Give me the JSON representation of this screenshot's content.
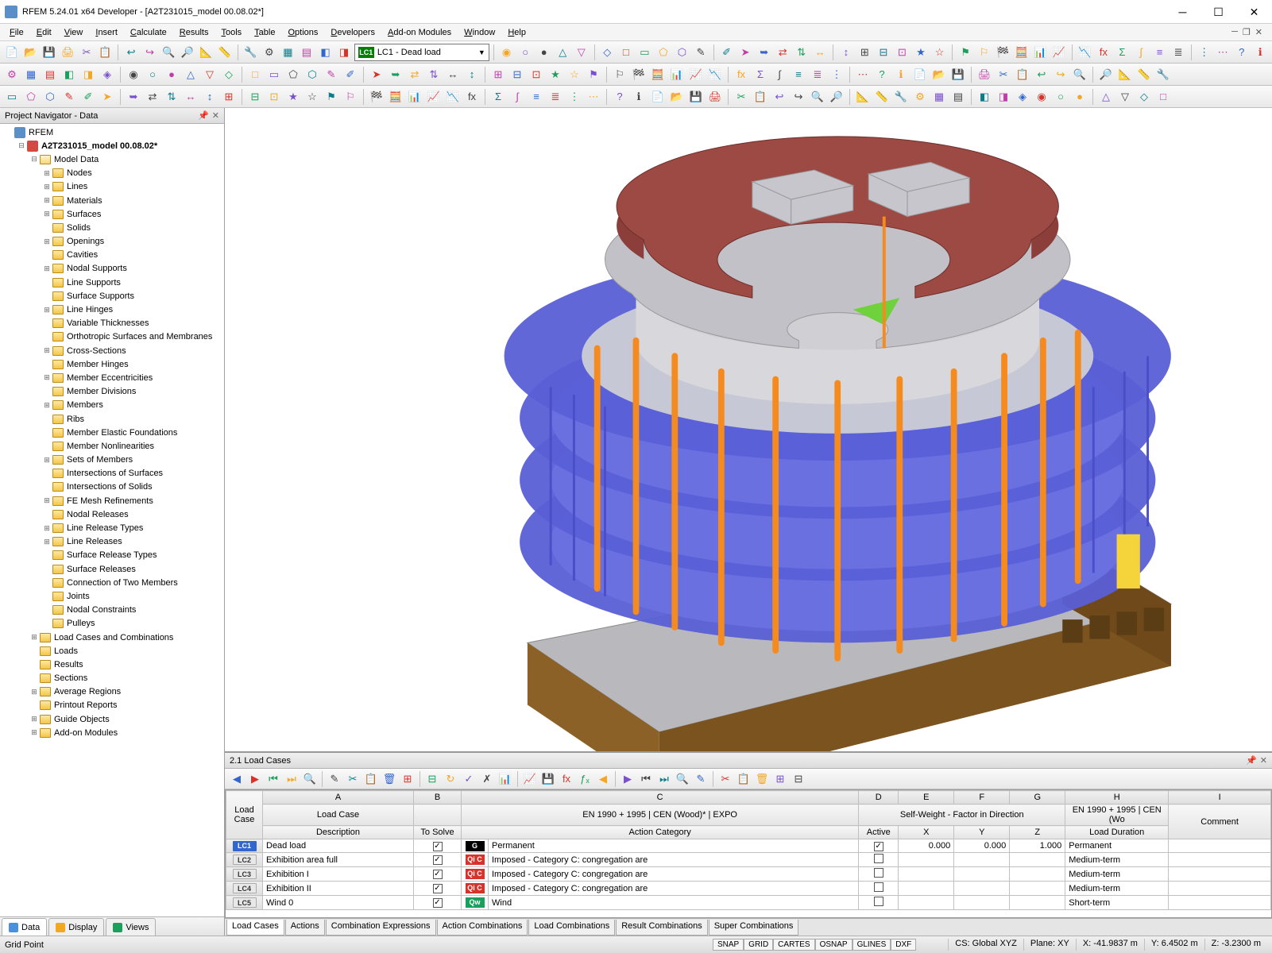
{
  "app": {
    "title": "RFEM 5.24.01 x64 Developer - [A2T231015_model 00.08.02*]",
    "icon_color": "#5b8fc7"
  },
  "menu": [
    "File",
    "Edit",
    "View",
    "Insert",
    "Calculate",
    "Results",
    "Tools",
    "Table",
    "Options",
    "Developers",
    "Add-on Modules",
    "Window",
    "Help"
  ],
  "load_case_selector": {
    "tag": "LC1",
    "label": "LC1 - Dead load",
    "tag_bg": "#008000"
  },
  "toolbar_rows": 3,
  "toolbar_icons_per_row": 58,
  "navigator": {
    "title": "Project Navigator - Data",
    "root": "RFEM",
    "model": "A2T231015_model 00.08.02*",
    "model_data_label": "Model Data",
    "items": [
      {
        "label": "Nodes",
        "exp": "+"
      },
      {
        "label": "Lines",
        "exp": "+"
      },
      {
        "label": "Materials",
        "exp": "+"
      },
      {
        "label": "Surfaces",
        "exp": "+"
      },
      {
        "label": "Solids",
        "exp": ""
      },
      {
        "label": "Openings",
        "exp": "+"
      },
      {
        "label": "Cavities",
        "exp": ""
      },
      {
        "label": "Nodal Supports",
        "exp": "+"
      },
      {
        "label": "Line Supports",
        "exp": ""
      },
      {
        "label": "Surface Supports",
        "exp": ""
      },
      {
        "label": "Line Hinges",
        "exp": "+"
      },
      {
        "label": "Variable Thicknesses",
        "exp": ""
      },
      {
        "label": "Orthotropic Surfaces and Membranes",
        "exp": ""
      },
      {
        "label": "Cross-Sections",
        "exp": "+"
      },
      {
        "label": "Member Hinges",
        "exp": ""
      },
      {
        "label": "Member Eccentricities",
        "exp": "+"
      },
      {
        "label": "Member Divisions",
        "exp": ""
      },
      {
        "label": "Members",
        "exp": "+"
      },
      {
        "label": "Ribs",
        "exp": ""
      },
      {
        "label": "Member Elastic Foundations",
        "exp": ""
      },
      {
        "label": "Member Nonlinearities",
        "exp": ""
      },
      {
        "label": "Sets of Members",
        "exp": "+"
      },
      {
        "label": "Intersections of Surfaces",
        "exp": ""
      },
      {
        "label": "Intersections of Solids",
        "exp": ""
      },
      {
        "label": "FE Mesh Refinements",
        "exp": "+"
      },
      {
        "label": "Nodal Releases",
        "exp": ""
      },
      {
        "label": "Line Release Types",
        "exp": "+"
      },
      {
        "label": "Line Releases",
        "exp": "+"
      },
      {
        "label": "Surface Release Types",
        "exp": ""
      },
      {
        "label": "Surface Releases",
        "exp": ""
      },
      {
        "label": "Connection of Two Members",
        "exp": ""
      },
      {
        "label": "Joints",
        "exp": ""
      },
      {
        "label": "Nodal Constraints",
        "exp": ""
      },
      {
        "label": "Pulleys",
        "exp": ""
      }
    ],
    "top_items": [
      {
        "label": "Load Cases and Combinations",
        "exp": "+"
      },
      {
        "label": "Loads",
        "exp": ""
      },
      {
        "label": "Results",
        "exp": ""
      },
      {
        "label": "Sections",
        "exp": ""
      },
      {
        "label": "Average Regions",
        "exp": "+"
      },
      {
        "label": "Printout Reports",
        "exp": ""
      },
      {
        "label": "Guide Objects",
        "exp": "+"
      },
      {
        "label": "Add-on Modules",
        "exp": "+"
      }
    ],
    "tabs": [
      {
        "label": "Data",
        "color": "#4a8fe0",
        "active": true
      },
      {
        "label": "Display",
        "color": "#f5a623",
        "active": false
      },
      {
        "label": "Views",
        "color": "#1aa05c",
        "active": false
      }
    ]
  },
  "bottom_panel": {
    "title": "2.1 Load Cases",
    "header_group1": "Load Case",
    "header_group3_top": "EN 1990 + 1995 | CEN (Wood)* | EXPO",
    "header_group4_top": "Self-Weight  -  Factor in Direction",
    "header_group5_top": "EN 1990 + 1995 | CEN (Wo",
    "cols_letters": [
      "A",
      "B",
      "C",
      "D",
      "E",
      "F",
      "G",
      "H",
      "I"
    ],
    "cols": [
      "Load Case",
      "Description",
      "To Solve",
      "Action Category",
      "Active",
      "X",
      "Y",
      "Z",
      "Load Duration",
      "Comment"
    ],
    "rows": [
      {
        "lc": "LC1",
        "sel": true,
        "desc": "Dead load",
        "solve": true,
        "cat_tag": "G",
        "cat_bg": "#000000",
        "cat": "Permanent",
        "active": true,
        "x": "0.000",
        "y": "0.000",
        "z": "1.000",
        "dur": "Permanent",
        "cmt": ""
      },
      {
        "lc": "LC2",
        "sel": false,
        "desc": "Exhibition area  full",
        "solve": true,
        "cat_tag": "Qi C",
        "cat_bg": "#d8332a",
        "cat": "Imposed - Category C: congregation are",
        "active": false,
        "x": "",
        "y": "",
        "z": "",
        "dur": "Medium-term",
        "cmt": ""
      },
      {
        "lc": "LC3",
        "sel": false,
        "desc": "Exhibition I",
        "solve": true,
        "cat_tag": "Qi C",
        "cat_bg": "#d8332a",
        "cat": "Imposed - Category C: congregation are",
        "active": false,
        "x": "",
        "y": "",
        "z": "",
        "dur": "Medium-term",
        "cmt": ""
      },
      {
        "lc": "LC4",
        "sel": false,
        "desc": "Exhibition II",
        "solve": true,
        "cat_tag": "Qi C",
        "cat_bg": "#d8332a",
        "cat": "Imposed - Category C: congregation are",
        "active": false,
        "x": "",
        "y": "",
        "z": "",
        "dur": "Medium-term",
        "cmt": ""
      },
      {
        "lc": "LC5",
        "sel": false,
        "desc": "Wind 0",
        "solve": true,
        "cat_tag": "Qw",
        "cat_bg": "#1aa05c",
        "cat": "Wind",
        "active": false,
        "x": "",
        "y": "",
        "z": "",
        "dur": "Short-term",
        "cmt": ""
      }
    ],
    "tabs": [
      "Load Cases",
      "Actions",
      "Combination Expressions",
      "Action Combinations",
      "Load Combinations",
      "Result Combinations",
      "Super Combinations"
    ],
    "active_tab": 0
  },
  "status": {
    "left": "Grid Point",
    "snap_btns": [
      "SNAP",
      "GRID",
      "CARTES",
      "OSNAP",
      "GLINES",
      "DXF"
    ],
    "segs": [
      "CS: Global XYZ",
      "Plane: XY",
      "X:  -41.9837 m",
      "Y:   6.4502 m",
      "Z:   -3.2300 m"
    ]
  },
  "model_colors": {
    "structure_blue": "#5a5fd6",
    "columns_orange": "#f58a1f",
    "floor_grey": "#b9b9bd",
    "roof_red": "#8c3f3a",
    "base_brown": "#9a6a2f",
    "rooftop_box": "#c6c6cc",
    "accent_green": "#6fd13b",
    "accent_yellow": "#f5d33b",
    "background": "#ffffff"
  }
}
